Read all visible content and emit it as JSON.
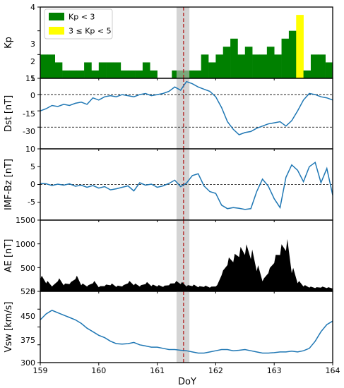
{
  "figure": {
    "xlabel": "DoY",
    "x_range": [
      159,
      164
    ],
    "x_ticks": [
      "159",
      "160",
      "161",
      "162",
      "163",
      "164"
    ],
    "highlight_band": [
      161.33,
      161.55
    ],
    "event_line_x": 161.45,
    "highlight_color": "#bdbdbd",
    "event_line_color": "#b22222"
  },
  "chart_data": [
    {
      "type": "bar",
      "ylabel": "Kp",
      "ylim": [
        1,
        4
      ],
      "yticks": [
        "1",
        "2",
        "3",
        "4"
      ],
      "legend": {
        "position": "top-left",
        "entries": [
          "Kp < 3",
          "3 ≤ Kp < 5"
        ]
      },
      "colors": {
        "low": "#008000",
        "mid": "#ffff00"
      },
      "bin_width_days": 0.125,
      "start": 159.0,
      "values": [
        2.0,
        2.0,
        1.67,
        1.33,
        1.33,
        1.33,
        1.67,
        1.33,
        1.67,
        1.67,
        1.67,
        1.33,
        1.33,
        1.33,
        1.67,
        1.33,
        1.0,
        1.0,
        1.33,
        1.33,
        1.33,
        1.33,
        2.0,
        1.67,
        2.0,
        2.33,
        2.67,
        2.0,
        2.33,
        2.0,
        2.0,
        2.33,
        2.0,
        2.67,
        3.0,
        3.67,
        1.33,
        2.0,
        2.0,
        1.67,
        1.33
      ]
    },
    {
      "type": "line",
      "ylabel": "Dst [nT]",
      "ylim": [
        -50,
        15
      ],
      "yticks": [
        "-30",
        "-15",
        "0",
        "15"
      ],
      "reference_lines": [
        0,
        -30
      ],
      "color": "#1f77b4",
      "x": [
        159.0,
        159.1,
        159.2,
        159.3,
        159.4,
        159.5,
        159.6,
        159.7,
        159.8,
        159.9,
        160.0,
        160.1,
        160.2,
        160.3,
        160.4,
        160.5,
        160.6,
        160.7,
        160.8,
        160.9,
        161.0,
        161.1,
        161.2,
        161.3,
        161.4,
        161.5,
        161.6,
        161.7,
        161.8,
        161.9,
        162.0,
        162.1,
        162.2,
        162.3,
        162.4,
        162.5,
        162.6,
        162.7,
        162.8,
        162.9,
        163.0,
        163.1,
        163.2,
        163.3,
        163.4,
        163.5,
        163.6,
        163.7,
        163.8,
        163.9,
        164.0
      ],
      "values": [
        -15,
        -13,
        -10,
        -11,
        -9,
        -10,
        -8,
        -7,
        -9,
        -3,
        -5,
        -2,
        -1,
        -2,
        0,
        -1,
        -2,
        0,
        1,
        -1,
        0,
        1,
        3,
        7,
        4,
        12,
        10,
        7,
        5,
        3,
        -2,
        -12,
        -25,
        -32,
        -37,
        -35,
        -34,
        -31,
        -29,
        -27,
        -26,
        -25,
        -29,
        -24,
        -15,
        -5,
        1,
        0,
        -2,
        -3,
        -5
      ]
    },
    {
      "type": "line",
      "ylabel": "IMF-Bz [nT]",
      "ylim": [
        -10,
        10
      ],
      "yticks": [
        "-5",
        "0",
        "5",
        "10"
      ],
      "reference_lines": [
        0
      ],
      "color": "#1f77b4",
      "x": [
        159.0,
        159.1,
        159.2,
        159.3,
        159.4,
        159.5,
        159.6,
        159.7,
        159.8,
        159.9,
        160.0,
        160.1,
        160.2,
        160.3,
        160.4,
        160.5,
        160.6,
        160.7,
        160.8,
        160.9,
        161.0,
        161.1,
        161.2,
        161.3,
        161.4,
        161.5,
        161.6,
        161.7,
        161.8,
        161.9,
        162.0,
        162.1,
        162.2,
        162.3,
        162.4,
        162.5,
        162.6,
        162.7,
        162.8,
        162.9,
        163.0,
        163.1,
        163.2,
        163.3,
        163.4,
        163.5,
        163.6,
        163.7,
        163.8,
        163.9,
        164.0
      ],
      "values": [
        0.3,
        0.2,
        -0.3,
        0.1,
        -0.2,
        0.2,
        -0.5,
        -0.2,
        -0.8,
        -0.3,
        -1.0,
        -0.6,
        -1.5,
        -1.2,
        -0.8,
        -0.4,
        -1.8,
        0.5,
        -0.2,
        0.1,
        -0.8,
        -0.4,
        0.3,
        1.2,
        -0.6,
        0.4,
        2.5,
        3.0,
        -0.4,
        -2.0,
        -2.5,
        -5.8,
        -6.8,
        -6.5,
        -6.7,
        -7.0,
        -6.8,
        -2.0,
        1.5,
        -0.5,
        -4.0,
        -6.5,
        2.0,
        5.5,
        4.0,
        0.8,
        5.0,
        6.2,
        0.5,
        4.5,
        -3.0
      ]
    },
    {
      "type": "area",
      "ylabel": "AE [nT]",
      "ylim": [
        0,
        1500
      ],
      "yticks": [
        "0",
        "500",
        "1000",
        "1500"
      ],
      "color": "#000000",
      "x": [
        159.0,
        159.1,
        159.2,
        159.3,
        159.4,
        159.5,
        159.6,
        159.7,
        159.8,
        159.9,
        160.0,
        160.1,
        160.2,
        160.3,
        160.4,
        160.5,
        160.6,
        160.7,
        160.8,
        160.9,
        161.0,
        161.1,
        161.2,
        161.3,
        161.4,
        161.5,
        161.6,
        161.7,
        161.8,
        161.9,
        162.0,
        162.1,
        162.2,
        162.3,
        162.4,
        162.5,
        162.6,
        162.7,
        162.8,
        162.9,
        163.0,
        163.1,
        163.2,
        163.3,
        163.4,
        163.5,
        163.6,
        163.7,
        163.8,
        163.9,
        164.0
      ],
      "values": [
        300,
        200,
        120,
        250,
        150,
        180,
        300,
        150,
        120,
        200,
        100,
        130,
        150,
        110,
        120,
        200,
        150,
        120,
        180,
        130,
        120,
        110,
        150,
        200,
        180,
        120,
        130,
        100,
        110,
        90,
        120,
        400,
        650,
        720,
        850,
        900,
        800,
        500,
        250,
        450,
        700,
        900,
        1000,
        450,
        200,
        120,
        90,
        80,
        90,
        80,
        70
      ]
    },
    {
      "type": "line",
      "ylabel": "Vsw [km/s]",
      "ylim": [
        300,
        600
      ],
      "yticks": [
        "300",
        "375",
        "450",
        "525"
      ],
      "color": "#1f77b4",
      "x": [
        159.0,
        159.1,
        159.2,
        159.3,
        159.4,
        159.5,
        159.6,
        159.7,
        159.8,
        159.9,
        160.0,
        160.1,
        160.2,
        160.3,
        160.4,
        160.5,
        160.6,
        160.7,
        160.8,
        160.9,
        161.0,
        161.1,
        161.2,
        161.3,
        161.4,
        161.5,
        161.6,
        161.7,
        161.8,
        161.9,
        162.0,
        162.1,
        162.2,
        162.3,
        162.4,
        162.5,
        162.6,
        162.7,
        162.8,
        162.9,
        163.0,
        163.1,
        163.2,
        163.3,
        163.4,
        163.5,
        163.6,
        163.7,
        163.8,
        163.9,
        164.0
      ],
      "values": [
        480,
        505,
        520,
        510,
        500,
        490,
        480,
        465,
        445,
        430,
        415,
        405,
        390,
        380,
        378,
        380,
        385,
        375,
        370,
        365,
        365,
        360,
        355,
        355,
        352,
        350,
        345,
        340,
        340,
        345,
        350,
        355,
        355,
        350,
        352,
        355,
        350,
        345,
        340,
        340,
        342,
        345,
        345,
        348,
        345,
        350,
        360,
        390,
        430,
        460,
        475
      ]
    }
  ]
}
